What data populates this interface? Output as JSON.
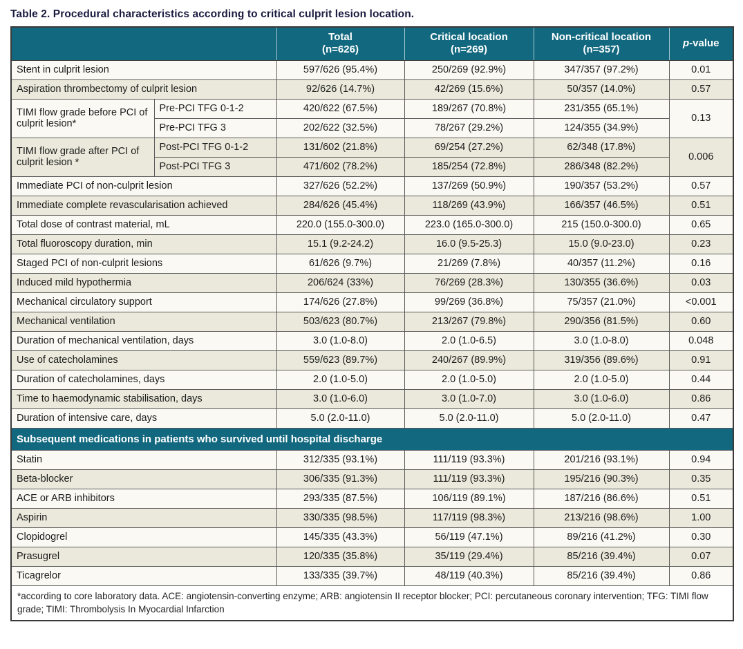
{
  "title": "Table 2. Procedural characteristics according to critical culprit lesion location.",
  "colors": {
    "header_teal": "#12687f",
    "row_white": "#faf9f4",
    "row_beige": "#eae9db",
    "header_text": "#ffffff",
    "title_text": "#1b1b40",
    "border": "#5a5a5a"
  },
  "table": {
    "header": {
      "empty": "",
      "total": {
        "l1": "Total",
        "l2": "(n=626)"
      },
      "critical": {
        "l1": "Critical location",
        "l2": "(n=269)"
      },
      "noncritical": {
        "l1": "Non-critical location",
        "l2": "(n=357)"
      },
      "p_italic": "p",
      "p_rest": "-value"
    },
    "rows": [
      {
        "type": "simple",
        "shade": false,
        "label": "Stent in culprit lesion",
        "total": "597/626 (95.4%)",
        "critical": "250/269 (92.9%)",
        "noncritical": "347/357 (97.2%)",
        "p": "0.01"
      },
      {
        "type": "simple",
        "shade": true,
        "label": "Aspiration thrombectomy of culprit lesion",
        "total": "92/626 (14.7%)",
        "critical": "42/269 (15.6%)",
        "noncritical": "50/357 (14.0%)",
        "p": "0.57"
      },
      {
        "type": "group",
        "shade": false,
        "label": "TIMI flow grade before PCI of culprit lesion*",
        "p": "0.13",
        "sub": [
          {
            "sublabel": "Pre-PCI TFG 0-1-2",
            "total": "420/622 (67.5%)",
            "critical": "189/267 (70.8%)",
            "noncritical": "231/355 (65.1%)"
          },
          {
            "sublabel": "Pre-PCI TFG 3",
            "total": "202/622 (32.5%)",
            "critical": "78/267 (29.2%)",
            "noncritical": "124/355 (34.9%)"
          }
        ]
      },
      {
        "type": "group",
        "shade": true,
        "label": "TIMI flow grade after PCI of culprit lesion *",
        "p": "0.006",
        "sub": [
          {
            "sublabel": "Post-PCI TFG 0-1-2",
            "total": "131/602 (21.8%)",
            "critical": "69/254 (27.2%)",
            "noncritical": "62/348 (17.8%)"
          },
          {
            "sublabel": "Post-PCI TFG 3",
            "total": "471/602 (78.2%)",
            "critical": "185/254 (72.8%)",
            "noncritical": "286/348 (82.2%)"
          }
        ]
      },
      {
        "type": "simple",
        "shade": false,
        "label": "Immediate PCI of non-culprit lesion",
        "total": "327/626 (52.2%)",
        "critical": "137/269 (50.9%)",
        "noncritical": "190/357 (53.2%)",
        "p": "0.57"
      },
      {
        "type": "simple",
        "shade": true,
        "label": "Immediate complete revascularisation achieved",
        "total": "284/626 (45.4%)",
        "critical": "118/269 (43.9%)",
        "noncritical": "166/357 (46.5%)",
        "p": "0.51"
      },
      {
        "type": "simple",
        "shade": false,
        "label": "Total dose of contrast material, mL",
        "total": "220.0 (155.0-300.0)",
        "critical": "223.0 (165.0-300.0)",
        "noncritical": "215 (150.0-300.0)",
        "p": "0.65"
      },
      {
        "type": "simple",
        "shade": true,
        "label": "Total fluoroscopy duration, min",
        "total": "15.1 (9.2-24.2)",
        "critical": "16.0 (9.5-25.3)",
        "noncritical": "15.0 (9.0-23.0)",
        "p": "0.23"
      },
      {
        "type": "simple",
        "shade": false,
        "label": "Staged PCI of non-culprit lesions",
        "total": "61/626 (9.7%)",
        "critical": "21/269 (7.8%)",
        "noncritical": "40/357 (11.2%)",
        "p": "0.16"
      },
      {
        "type": "simple",
        "shade": true,
        "label": "Induced mild hypothermia",
        "total": "206/624 (33%)",
        "critical": "76/269 (28.3%)",
        "noncritical": "130/355 (36.6%)",
        "p": "0.03"
      },
      {
        "type": "simple",
        "shade": false,
        "label": "Mechanical circulatory support",
        "total": "174/626 (27.8%)",
        "critical": "99/269 (36.8%)",
        "noncritical": "75/357 (21.0%)",
        "p": "<0.001"
      },
      {
        "type": "simple",
        "shade": true,
        "label": "Mechanical ventilation",
        "total": "503/623 (80.7%)",
        "critical": "213/267 (79.8%)",
        "noncritical": "290/356 (81.5%)",
        "p": "0.60"
      },
      {
        "type": "simple",
        "shade": false,
        "label": "Duration of mechanical ventilation, days",
        "total": "3.0 (1.0-8.0)",
        "critical": "2.0 (1.0-6.5)",
        "noncritical": "3.0 (1.0-8.0)",
        "p": "0.048"
      },
      {
        "type": "simple",
        "shade": true,
        "label": "Use of catecholamines",
        "total": "559/623 (89.7%)",
        "critical": "240/267 (89.9%)",
        "noncritical": "319/356 (89.6%)",
        "p": "0.91"
      },
      {
        "type": "simple",
        "shade": false,
        "label": "Duration of catecholamines, days",
        "total": "2.0 (1.0-5.0)",
        "critical": "2.0 (1.0-5.0)",
        "noncritical": "2.0 (1.0-5.0)",
        "p": "0.44"
      },
      {
        "type": "simple",
        "shade": true,
        "label": "Time to haemodynamic stabilisation, days",
        "total": "3.0 (1.0-6.0)",
        "critical": "3.0 (1.0-7.0)",
        "noncritical": "3.0 (1.0-6.0)",
        "p": "0.86"
      },
      {
        "type": "simple",
        "shade": false,
        "label": "Duration of intensive care, days",
        "total": "5.0 (2.0-11.0)",
        "critical": "5.0 (2.0-11.0)",
        "noncritical": "5.0 (2.0-11.0)",
        "p": "0.47"
      },
      {
        "type": "section",
        "label": "Subsequent medications in patients who survived until hospital discharge"
      },
      {
        "type": "simple",
        "shade": false,
        "label": "Statin",
        "total": "312/335 (93.1%)",
        "critical": "111/119 (93.3%)",
        "noncritical": "201/216 (93.1%)",
        "p": "0.94"
      },
      {
        "type": "simple",
        "shade": true,
        "label": "Beta-blocker",
        "total": "306/335 (91.3%)",
        "critical": "111/119 (93.3%)",
        "noncritical": "195/216 (90.3%)",
        "p": "0.35"
      },
      {
        "type": "simple",
        "shade": false,
        "label": "ACE or ARB inhibitors",
        "total": "293/335 (87.5%)",
        "critical": "106/119 (89.1%)",
        "noncritical": "187/216 (86.6%)",
        "p": "0.51"
      },
      {
        "type": "simple",
        "shade": true,
        "label": "Aspirin",
        "total": "330/335 (98.5%)",
        "critical": "117/119 (98.3%)",
        "noncritical": "213/216 (98.6%)",
        "p": "1.00"
      },
      {
        "type": "simple",
        "shade": false,
        "label": "Clopidogrel",
        "total": "145/335 (43.3%)",
        "critical": "56/119 (47.1%)",
        "noncritical": "89/216 (41.2%)",
        "p": "0.30"
      },
      {
        "type": "simple",
        "shade": true,
        "label": "Prasugrel",
        "total": "120/335 (35.8%)",
        "critical": "35/119 (29.4%)",
        "noncritical": "85/216 (39.4%)",
        "p": "0.07"
      },
      {
        "type": "simple",
        "shade": false,
        "label": "Ticagrelor",
        "total": "133/335 (39.7%)",
        "critical": "48/119 (40.3%)",
        "noncritical": "85/216 (39.4%)",
        "p": "0.86"
      }
    ],
    "footnote": "*according to core laboratory data. ACE: angiotensin-converting enzyme; ARB: angiotensin II receptor blocker; PCI: percutaneous coronary intervention; TFG: TIMI flow grade; TIMI: Thrombolysis In Myocardial Infarction"
  }
}
